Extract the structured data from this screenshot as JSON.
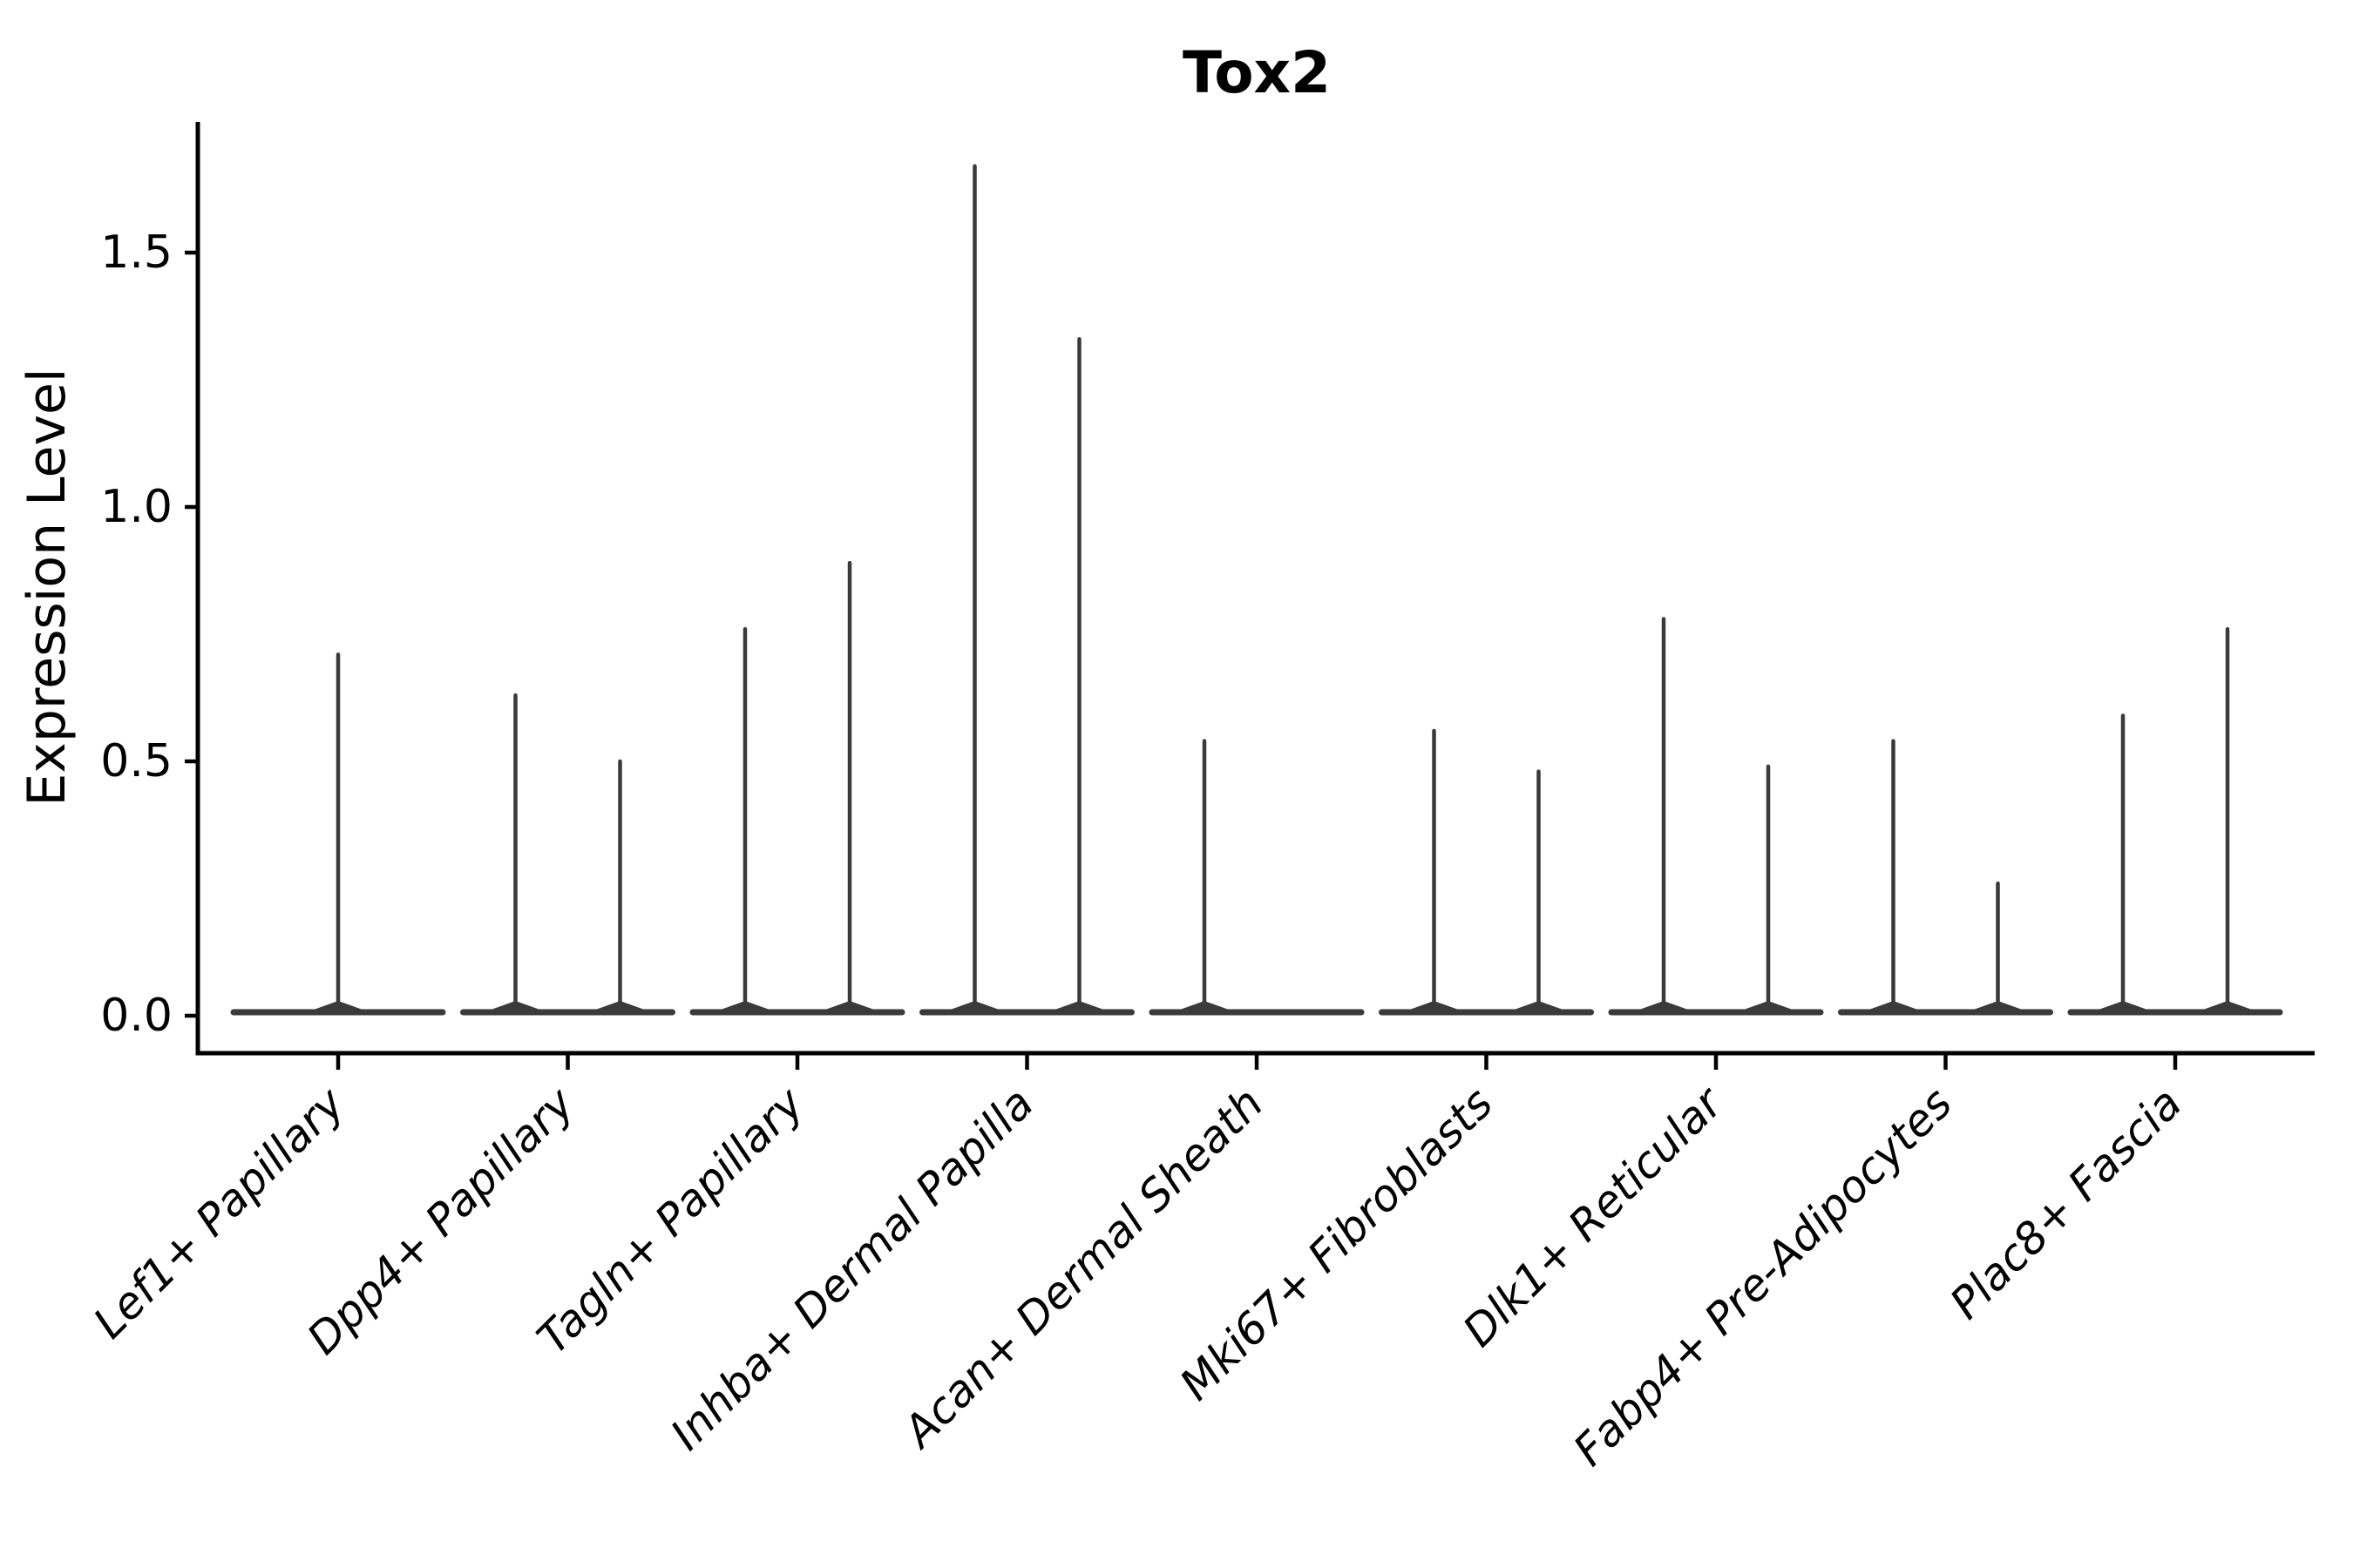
{
  "figure": {
    "background_color": "#ffffff",
    "text_color": "#000000"
  },
  "chart_data": {
    "type": "violin",
    "title": "Tox2",
    "xlabel": "",
    "ylabel": "Expression Level",
    "ytick_labels": [
      "0.0",
      "0.5",
      "1.0",
      "1.5"
    ],
    "ytick_values": [
      0.0,
      0.5,
      1.0,
      1.5
    ],
    "ylim": [
      -0.073,
      1.757
    ],
    "grid": false,
    "legend": "none",
    "xlabel_rotation_degrees": 45,
    "colors": {
      "violin_stroke": "#3a3a3a",
      "axis_stroke": "#000000"
    },
    "categories": [
      "Lef1+ Papillary",
      "Dpp4+ Papillary",
      "Tagln+ Papillary",
      "Inhba+ Dermal Papilla",
      "Acan+ Dermal Sheath",
      "Mki67+ Fibroblasts",
      "Dlk1+ Reticular",
      "Fabp4+ Pre-Adipocytes",
      "Plac8+ Fascia"
    ],
    "groups": [
      {
        "label": "Lef1+ Papillary",
        "violins": [
          {
            "position": "center",
            "max": 0.71
          }
        ]
      },
      {
        "label": "Dpp4+ Papillary",
        "violins": [
          {
            "position": "left",
            "max": 0.63
          },
          {
            "position": "right",
            "max": 0.5
          }
        ]
      },
      {
        "label": "Tagln+ Papillary",
        "violins": [
          {
            "position": "left",
            "max": 0.76
          },
          {
            "position": "right",
            "max": 0.89
          }
        ]
      },
      {
        "label": "Inhba+ Dermal Papilla",
        "violins": [
          {
            "position": "left",
            "max": 1.67
          },
          {
            "position": "right",
            "max": 1.33
          }
        ]
      },
      {
        "label": "Acan+ Dermal Sheath",
        "violins": [
          {
            "position": "left",
            "max": 0.54
          }
        ]
      },
      {
        "label": "Mki67+ Fibroblasts",
        "violins": [
          {
            "position": "left",
            "max": 0.56
          },
          {
            "position": "right",
            "max": 0.48
          }
        ]
      },
      {
        "label": "Dlk1+ Reticular",
        "violins": [
          {
            "position": "left",
            "max": 0.78
          },
          {
            "position": "right",
            "max": 0.49
          }
        ]
      },
      {
        "label": "Fabp4+ Pre-Adipocytes",
        "violins": [
          {
            "position": "left",
            "max": 0.54
          },
          {
            "position": "right",
            "max": 0.26
          }
        ]
      },
      {
        "label": "Plac8+ Fascia",
        "violins": [
          {
            "position": "left",
            "max": 0.59
          },
          {
            "position": "right",
            "max": 0.76
          }
        ]
      }
    ],
    "note_all_violins_baseline_value": 0.0
  }
}
